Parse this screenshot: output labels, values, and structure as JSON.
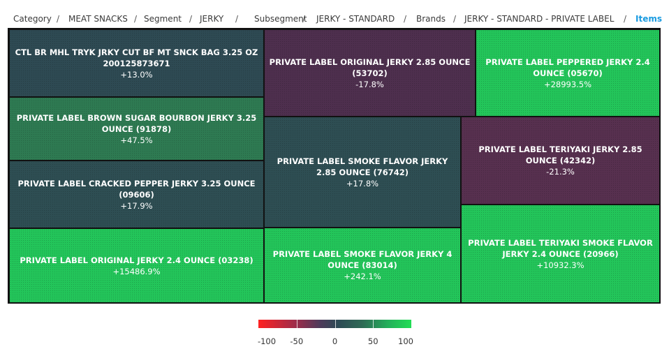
{
  "breadcrumb": [
    {
      "label": "Category"
    },
    {
      "label": "MEAT SNACKS"
    },
    {
      "label": "Segment"
    },
    {
      "label": "JERKY"
    },
    {
      "label": "Subsegment"
    },
    {
      "label": "JERKY - STANDARD"
    },
    {
      "label": "Brands"
    },
    {
      "label": "JERKY - STANDARD - PRIVATE LABEL"
    },
    {
      "label": "Items",
      "active": true
    }
  ],
  "breadcrumb_separator": "/",
  "colors": {
    "negative": "#ff2222",
    "neutral": "#2f4a55",
    "positive": "#22dd55",
    "active_crumb": "#1a9be0",
    "tile_border": "#111111"
  },
  "chart_data": {
    "type": "treemap",
    "tiles": [
      {
        "name": "CTL BR MHL TRYK JRKY CUT BF MT SNCK BAG 3.25 OZ 200125873671",
        "change_label": "+13.0%",
        "color": "#2e4a53"
      },
      {
        "name": "PRIVATE LABEL BROWN SUGAR BOURBON JERKY 3.25 OUNCE (91878)",
        "change_label": "+47.5%",
        "color": "#2e7a52"
      },
      {
        "name": "PRIVATE LABEL CRACKED PEPPER JERKY 3.25 OUNCE (09606)",
        "change_label": "+17.9%",
        "color": "#2e4e53"
      },
      {
        "name": "PRIVATE LABEL ORIGINAL JERKY 2.4 OUNCE (03238)",
        "change_label": "+15486.9%",
        "color": "#23c55a"
      },
      {
        "name": "PRIVATE LABEL ORIGINAL JERKY 2.85 OUNCE (53702)",
        "change_label": "-17.8%",
        "color": "#4e2f4e"
      },
      {
        "name": "PRIVATE LABEL SMOKE FLAVOR JERKY 2.85 OUNCE (76742)",
        "change_label": "+17.8%",
        "color": "#2e4e53"
      },
      {
        "name": "PRIVATE LABEL SMOKE FLAVOR JERKY 4 OUNCE (83014)",
        "change_label": "+242.1%",
        "color": "#23c55a"
      },
      {
        "name": "PRIVATE LABEL PEPPERED JERKY 2.4 OUNCE (05670)",
        "change_label": "+28993.5%",
        "color": "#23c55a"
      },
      {
        "name": "PRIVATE LABEL TERIYAKI JERKY 2.85 OUNCE (42342)",
        "change_label": "-21.3%",
        "color": "#57304f"
      },
      {
        "name": "PRIVATE LABEL TERIYAKI SMOKE FLAVOR JERKY 2.4 OUNCE (20966)",
        "change_label": "+10932.3%",
        "color": "#23c55a"
      }
    ],
    "legend": {
      "ticks": [
        -100,
        -50,
        0,
        50,
        100
      ],
      "tick_labels": [
        "-100",
        "-50",
        "0",
        "50",
        "100"
      ],
      "range": [
        -100,
        100
      ]
    }
  }
}
